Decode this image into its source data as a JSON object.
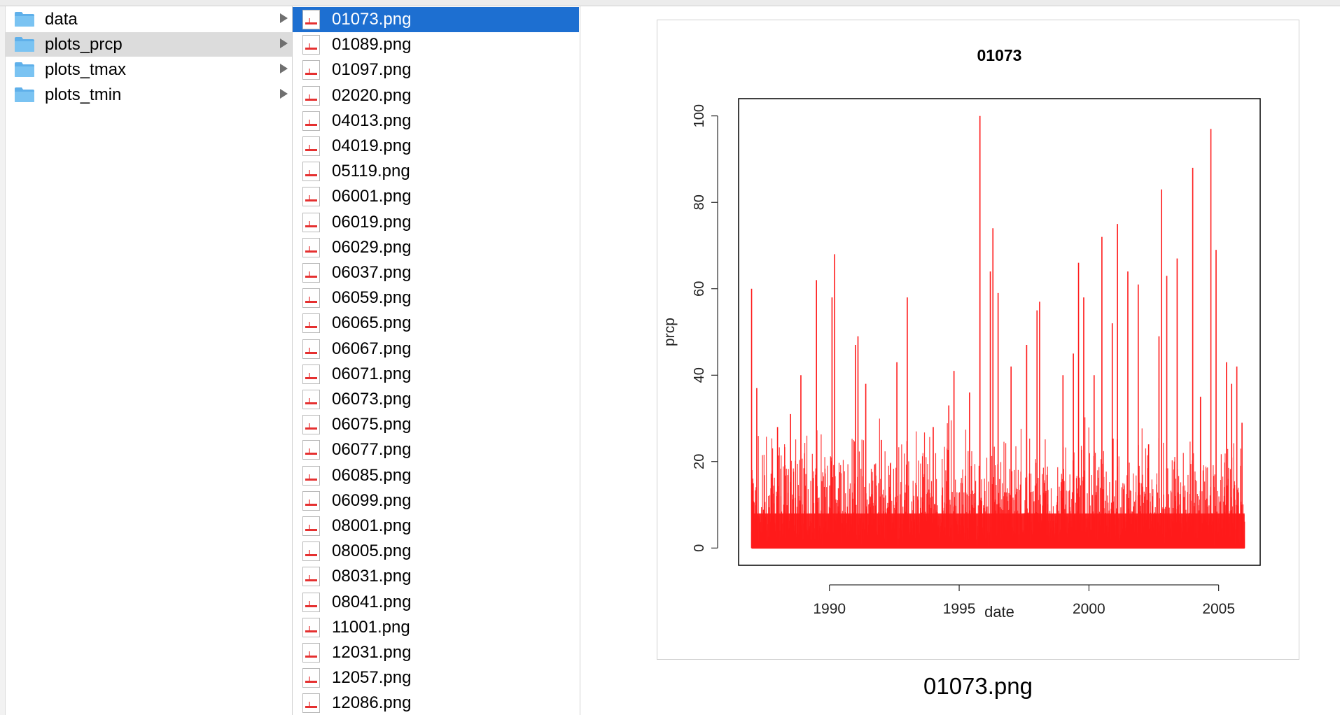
{
  "folders": [
    {
      "name": "data"
    },
    {
      "name": "plots_prcp"
    },
    {
      "name": "plots_tmax"
    },
    {
      "name": "plots_tmin"
    }
  ],
  "selected_folder": 1,
  "files": [
    "01073.png",
    "01089.png",
    "01097.png",
    "02020.png",
    "04013.png",
    "04019.png",
    "05119.png",
    "06001.png",
    "06019.png",
    "06029.png",
    "06037.png",
    "06059.png",
    "06065.png",
    "06067.png",
    "06071.png",
    "06073.png",
    "06075.png",
    "06077.png",
    "06085.png",
    "06099.png",
    "08001.png",
    "08005.png",
    "08031.png",
    "08041.png",
    "11001.png",
    "12031.png",
    "12057.png",
    "12086.png"
  ],
  "selected_file": 0,
  "preview": {
    "filename": "01073.png"
  },
  "colors": {
    "selection_blue": "#1d6fd1",
    "folder_blue": "#7ac3f2",
    "series_red": "#ff1a1a"
  },
  "chart_data": {
    "type": "bar",
    "title": "01073",
    "xlabel": "date",
    "ylabel": "prcp",
    "xlim": [
      1986.5,
      2006.6
    ],
    "ylim": [
      -4,
      104
    ],
    "x_ticks": [
      1990,
      1995,
      2000,
      2005
    ],
    "y_ticks": [
      0,
      20,
      40,
      60,
      80,
      100
    ],
    "x_tick_labels": [
      "1990",
      "1995",
      "2000",
      "2005"
    ],
    "y_tick_labels": [
      "0",
      "20",
      "40",
      "60",
      "80",
      "100"
    ],
    "grid": false,
    "x_range": [
      1987.0,
      2006.0
    ],
    "series": [
      {
        "color": "#ff1a1a",
        "peaks": [
          {
            "x": 1987.0,
            "y": 60
          },
          {
            "x": 1987.2,
            "y": 37
          },
          {
            "x": 1988.0,
            "y": 28
          },
          {
            "x": 1988.5,
            "y": 31
          },
          {
            "x": 1988.9,
            "y": 40
          },
          {
            "x": 1989.5,
            "y": 62
          },
          {
            "x": 1990.1,
            "y": 58
          },
          {
            "x": 1990.2,
            "y": 68
          },
          {
            "x": 1991.0,
            "y": 47
          },
          {
            "x": 1991.1,
            "y": 49
          },
          {
            "x": 1991.4,
            "y": 38
          },
          {
            "x": 1992.0,
            "y": 25
          },
          {
            "x": 1992.6,
            "y": 43
          },
          {
            "x": 1993.0,
            "y": 58
          },
          {
            "x": 1994.0,
            "y": 28
          },
          {
            "x": 1994.6,
            "y": 33
          },
          {
            "x": 1994.8,
            "y": 41
          },
          {
            "x": 1995.4,
            "y": 36
          },
          {
            "x": 1995.8,
            "y": 100
          },
          {
            "x": 1996.2,
            "y": 64
          },
          {
            "x": 1996.3,
            "y": 74
          },
          {
            "x": 1996.5,
            "y": 59
          },
          {
            "x": 1997.0,
            "y": 42
          },
          {
            "x": 1997.6,
            "y": 47
          },
          {
            "x": 1998.0,
            "y": 55
          },
          {
            "x": 1998.1,
            "y": 57
          },
          {
            "x": 1999.0,
            "y": 40
          },
          {
            "x": 1999.4,
            "y": 45
          },
          {
            "x": 1999.6,
            "y": 66
          },
          {
            "x": 1999.8,
            "y": 58
          },
          {
            "x": 2000.2,
            "y": 40
          },
          {
            "x": 2000.5,
            "y": 72
          },
          {
            "x": 2000.9,
            "y": 52
          },
          {
            "x": 2001.1,
            "y": 75
          },
          {
            "x": 2001.5,
            "y": 64
          },
          {
            "x": 2001.9,
            "y": 61
          },
          {
            "x": 2002.3,
            "y": 24
          },
          {
            "x": 2002.7,
            "y": 49
          },
          {
            "x": 2002.8,
            "y": 83
          },
          {
            "x": 2003.0,
            "y": 63
          },
          {
            "x": 2003.4,
            "y": 67
          },
          {
            "x": 2004.0,
            "y": 88
          },
          {
            "x": 2004.3,
            "y": 35
          },
          {
            "x": 2004.7,
            "y": 97
          },
          {
            "x": 2004.9,
            "y": 69
          },
          {
            "x": 2005.3,
            "y": 43
          },
          {
            "x": 2005.5,
            "y": 38
          },
          {
            "x": 2005.7,
            "y": 42
          },
          {
            "x": 2005.9,
            "y": 29
          }
        ]
      }
    ]
  }
}
